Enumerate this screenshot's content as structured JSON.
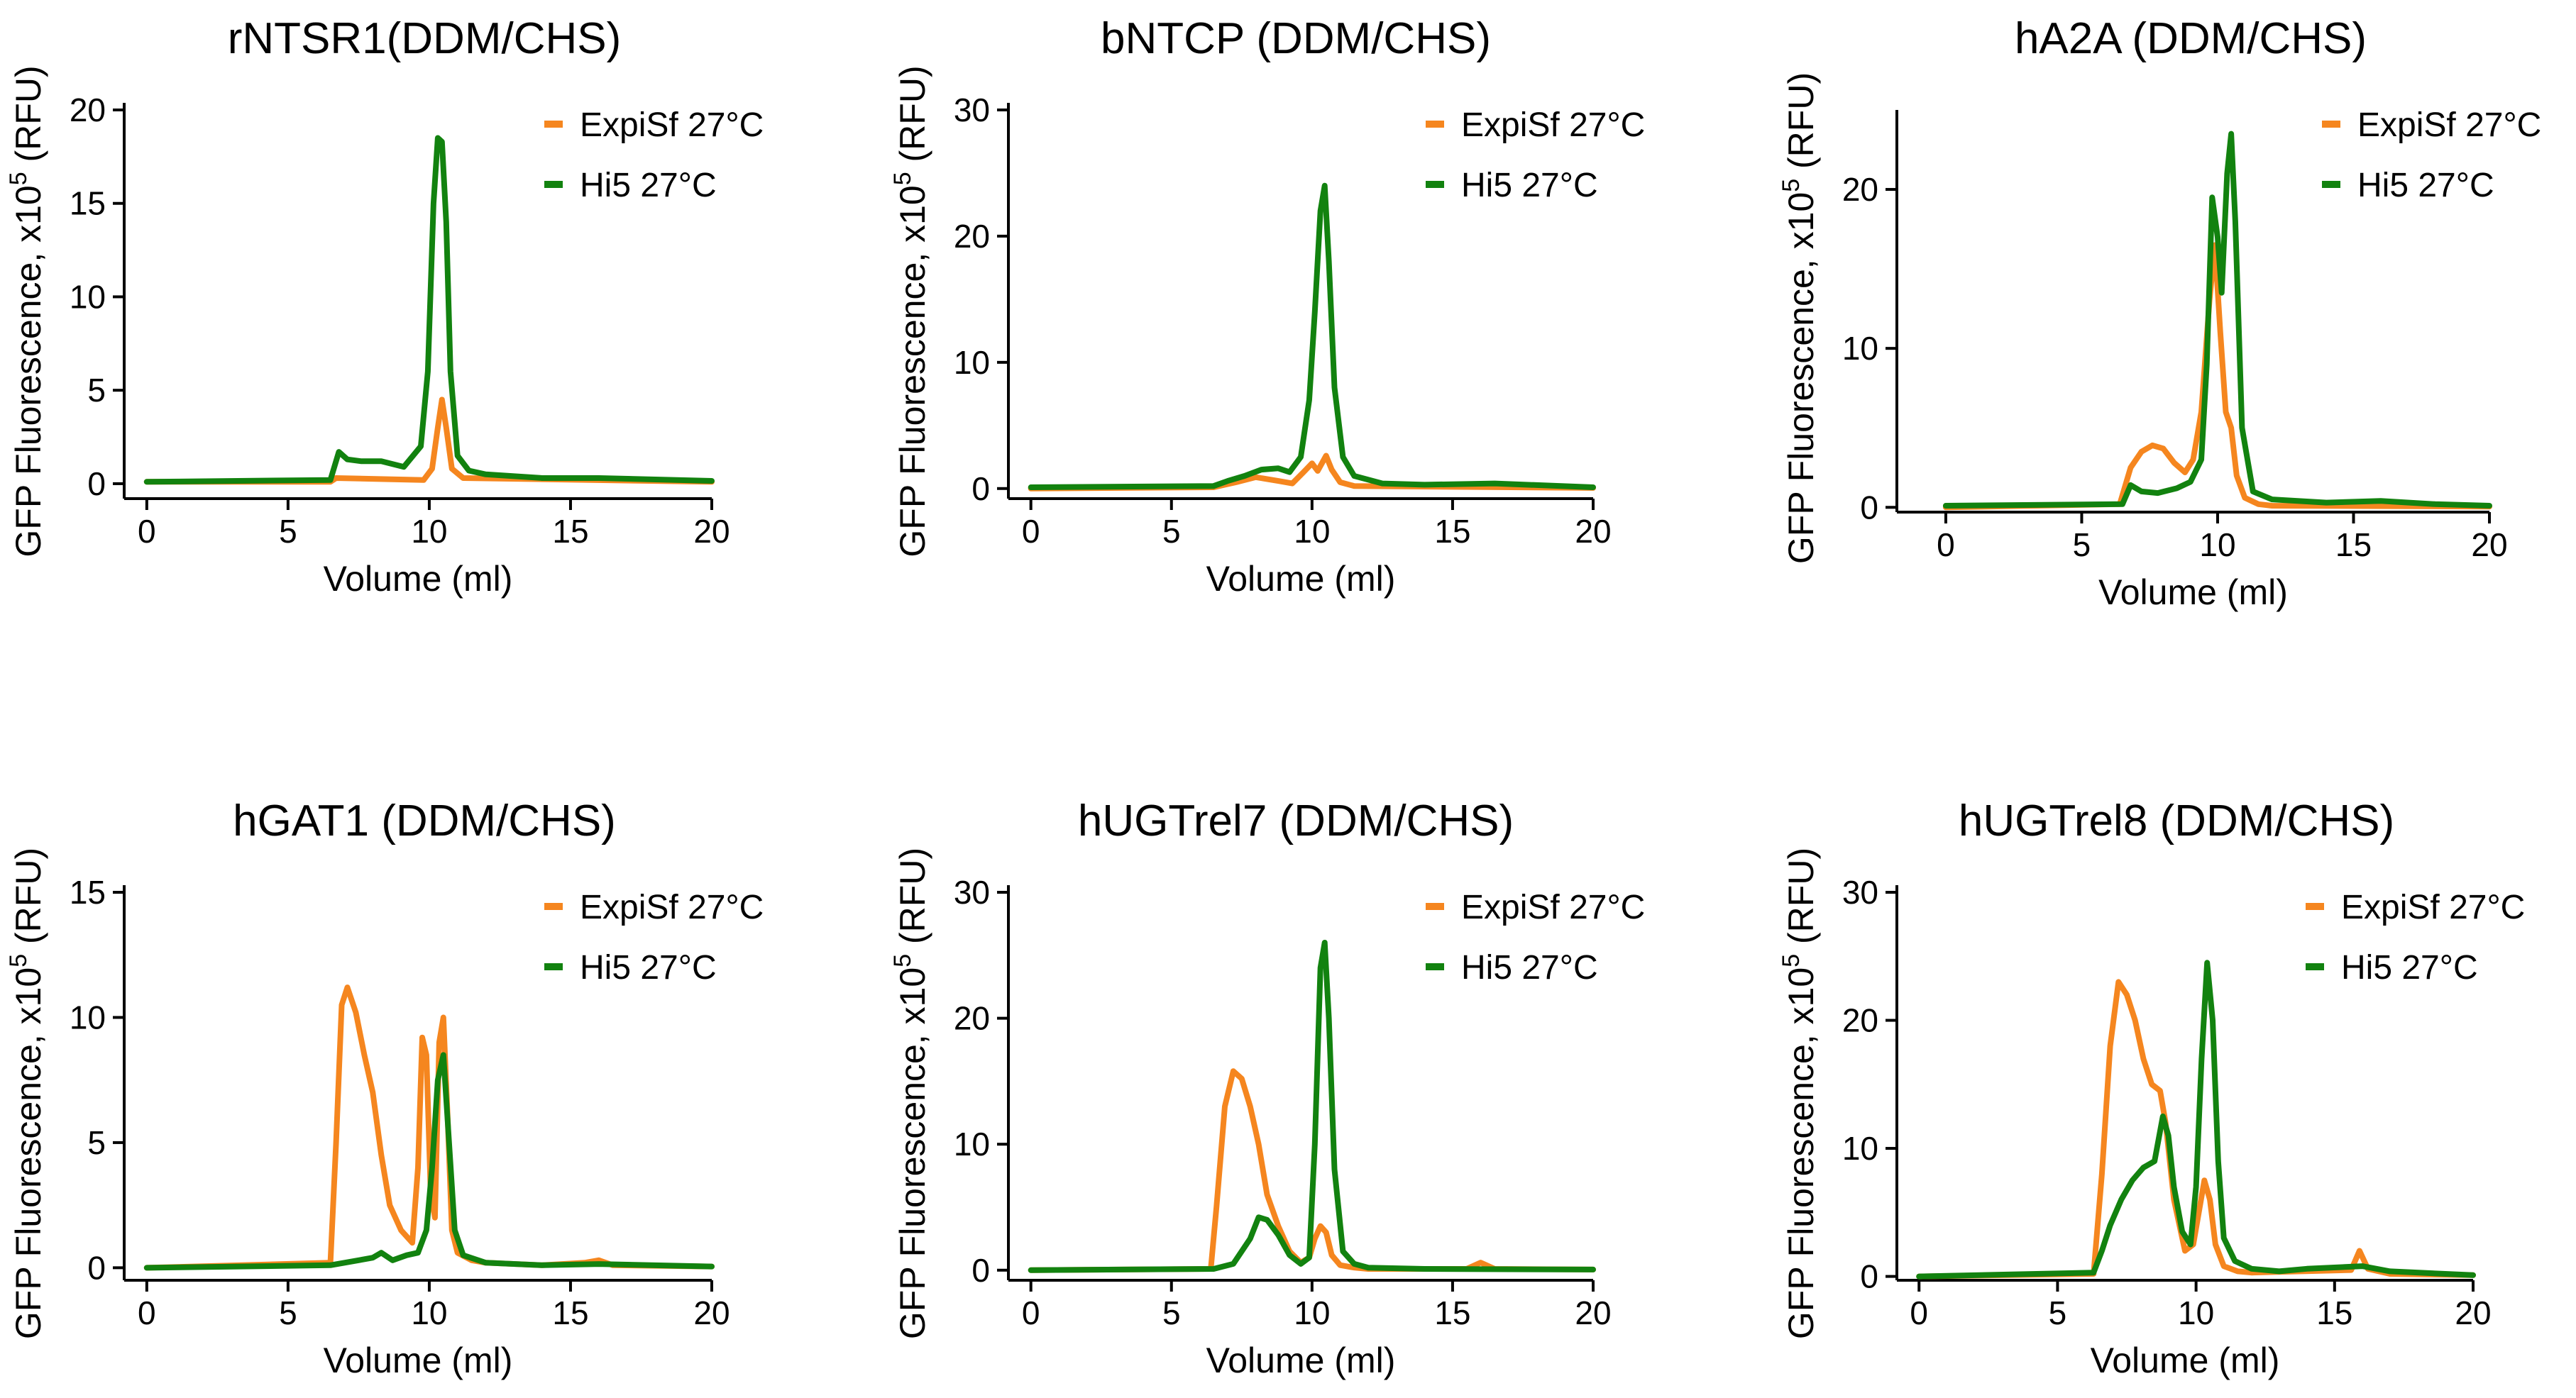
{
  "colors": {
    "expisf": "#F5861F",
    "hi5": "#12820F",
    "axis": "#000000"
  },
  "chart_data": [
    {
      "type": "line",
      "title": "rNTSR1(DDM/CHS)",
      "xlabel": "Volume (ml)",
      "ylabel_prefix": "GFP Fluorescence, x10",
      "ylabel_exp": "5",
      "ylabel_suffix": " (RFU)",
      "xlim": [
        -0.8,
        20
      ],
      "ylim": [
        -0.8,
        20
      ],
      "xticks": [
        0,
        5,
        10,
        15,
        20
      ],
      "yticks": [
        0,
        5,
        10,
        15,
        20
      ],
      "xtick_labels": [
        "0",
        "5",
        "10",
        "15",
        "20"
      ],
      "ytick_labels": [
        "0",
        "5",
        "10",
        "15",
        "20"
      ],
      "legend": [
        "ExpiSf 27°C",
        "Hi5 27°C"
      ],
      "series": [
        {
          "name": "ExpiSf 27°C",
          "x": [
            0,
            6.5,
            6.7,
            9.8,
            10.1,
            10.3,
            10.45,
            10.6,
            10.8,
            11.2,
            20
          ],
          "y": [
            0.1,
            0.1,
            0.3,
            0.2,
            0.8,
            3,
            4.5,
            3,
            0.8,
            0.3,
            0.1
          ]
        },
        {
          "name": "Hi5 27°C",
          "x": [
            0,
            6.5,
            6.8,
            7.1,
            7.6,
            8.3,
            9.1,
            9.7,
            9.95,
            10.15,
            10.3,
            10.45,
            10.6,
            10.75,
            11.0,
            11.4,
            12,
            14,
            16,
            20
          ],
          "y": [
            0.1,
            0.2,
            1.7,
            1.3,
            1.2,
            1.2,
            0.9,
            2.0,
            6,
            15,
            18.5,
            18.3,
            14,
            6,
            1.5,
            0.7,
            0.5,
            0.3,
            0.3,
            0.15
          ]
        }
      ]
    },
    {
      "type": "line",
      "title": "bNTCP (DDM/CHS)",
      "xlabel": "Volume (ml)",
      "ylabel_prefix": "GFP Fluorescence, x10",
      "ylabel_exp": "5",
      "ylabel_suffix": " (RFU)",
      "xlim": [
        -0.8,
        20
      ],
      "ylim": [
        -0.8,
        30
      ],
      "xticks": [
        0,
        5,
        10,
        15,
        20
      ],
      "yticks": [
        0,
        10,
        20,
        30
      ],
      "xtick_labels": [
        "0",
        "5",
        "10",
        "15",
        "20"
      ],
      "ytick_labels": [
        "0",
        "10",
        "20",
        "30"
      ],
      "legend": [
        "ExpiSf 27°C",
        "Hi5 27°C"
      ],
      "series": [
        {
          "name": "ExpiSf 27°C",
          "x": [
            0,
            6.5,
            7.3,
            8.0,
            8.8,
            9.3,
            9.7,
            10.0,
            10.2,
            10.5,
            10.7,
            11.0,
            11.5,
            20
          ],
          "y": [
            0,
            0.1,
            0.5,
            0.9,
            0.6,
            0.4,
            1.3,
            2.0,
            1.4,
            2.6,
            1.5,
            0.5,
            0.2,
            0.05
          ]
        },
        {
          "name": "Hi5 27°C",
          "x": [
            0,
            6.5,
            7.0,
            7.6,
            8.2,
            8.8,
            9.2,
            9.6,
            9.9,
            10.1,
            10.3,
            10.45,
            10.6,
            10.8,
            11.1,
            11.5,
            12.5,
            14,
            16.5,
            20
          ],
          "y": [
            0.1,
            0.2,
            0.6,
            1.0,
            1.5,
            1.6,
            1.3,
            2.5,
            7,
            14,
            22,
            24,
            18,
            8,
            2.5,
            1.0,
            0.4,
            0.3,
            0.4,
            0.1
          ]
        }
      ]
    },
    {
      "type": "line",
      "title": "hA2A (DDM/CHS)",
      "xlabel": "Volume (ml)",
      "ylabel_prefix": "GFP Fluorescence, x10",
      "ylabel_exp": "5",
      "ylabel_suffix": " (RFU)",
      "xlim": [
        -1.8,
        20
      ],
      "ylim": [
        -0.3,
        25
      ],
      "xticks": [
        0,
        5,
        10,
        15,
        20
      ],
      "yticks": [
        0,
        10,
        20
      ],
      "xtick_labels": [
        "0",
        "5",
        "10",
        "15",
        "20"
      ],
      "ytick_labels": [
        "0",
        "10",
        "20"
      ],
      "legend": [
        "ExpiSf 27°C",
        "Hi5 27°C"
      ],
      "series": [
        {
          "name": "ExpiSf 27°C",
          "x": [
            0,
            6.4,
            6.8,
            7.2,
            7.6,
            8.0,
            8.4,
            8.8,
            9.1,
            9.4,
            9.7,
            9.9,
            10.1,
            10.3,
            10.5,
            10.7,
            11.0,
            11.5,
            12,
            20
          ],
          "y": [
            0,
            0.2,
            2.5,
            3.5,
            3.9,
            3.7,
            2.8,
            2.2,
            3.0,
            6.0,
            13,
            16.5,
            11,
            6,
            5,
            2.0,
            0.6,
            0.2,
            0.1,
            0.05
          ]
        },
        {
          "name": "Hi5 27°C",
          "x": [
            0,
            6.5,
            6.8,
            7.2,
            7.8,
            8.5,
            9.0,
            9.4,
            9.6,
            9.8,
            10.0,
            10.15,
            10.35,
            10.5,
            10.65,
            10.9,
            11.3,
            12,
            14,
            16,
            18,
            20
          ],
          "y": [
            0.1,
            0.2,
            1.4,
            1.0,
            0.9,
            1.2,
            1.6,
            3.0,
            9,
            19.5,
            17,
            13.5,
            21,
            23.5,
            18,
            5,
            1.0,
            0.5,
            0.3,
            0.4,
            0.2,
            0.1
          ]
        }
      ]
    },
    {
      "type": "line",
      "title": "hGAT1 (DDM/CHS)",
      "xlabel": "Volume (ml)",
      "ylabel_prefix": "GFP Fluorescence, x10",
      "ylabel_exp": "5",
      "ylabel_suffix": " (RFU)",
      "xlim": [
        -0.8,
        20
      ],
      "ylim": [
        -0.5,
        15
      ],
      "xticks": [
        0,
        5,
        10,
        15,
        20
      ],
      "yticks": [
        0,
        5,
        10,
        15
      ],
      "xtick_labels": [
        "0",
        "5",
        "10",
        "15",
        "20"
      ],
      "ytick_labels": [
        "0",
        "5",
        "10",
        "15"
      ],
      "legend": [
        "ExpiSf 27°C",
        "Hi5 27°C"
      ],
      "series": [
        {
          "name": "ExpiSf 27°C",
          "x": [
            0,
            6.5,
            6.7,
            6.9,
            7.1,
            7.4,
            7.7,
            8.0,
            8.3,
            8.6,
            9.0,
            9.4,
            9.6,
            9.75,
            9.9,
            10.05,
            10.2,
            10.35,
            10.5,
            10.65,
            10.8,
            11.0,
            11.5,
            12,
            14,
            15.5,
            16,
            16.5,
            20
          ],
          "y": [
            0,
            0.2,
            5,
            10.5,
            11.2,
            10.2,
            8.5,
            7.0,
            4.5,
            2.5,
            1.5,
            1.0,
            4,
            9.2,
            8.5,
            3,
            2.0,
            9,
            10,
            6,
            1.5,
            0.6,
            0.3,
            0.2,
            0.1,
            0.2,
            0.3,
            0.1,
            0.05
          ]
        },
        {
          "name": "Hi5 27°C",
          "x": [
            0,
            6.5,
            7.0,
            7.5,
            8.0,
            8.3,
            8.7,
            9.2,
            9.6,
            9.9,
            10.1,
            10.3,
            10.5,
            10.7,
            10.9,
            11.2,
            12,
            14,
            16,
            20
          ],
          "y": [
            0,
            0.1,
            0.2,
            0.3,
            0.4,
            0.6,
            0.3,
            0.5,
            0.6,
            1.5,
            4,
            7.5,
            8.5,
            5,
            1.5,
            0.5,
            0.2,
            0.1,
            0.15,
            0.05
          ]
        }
      ]
    },
    {
      "type": "line",
      "title": "hUGTrel7 (DDM/CHS)",
      "xlabel": "Volume (ml)",
      "ylabel_prefix": "GFP Fluorescence, x10",
      "ylabel_exp": "5",
      "ylabel_suffix": " (RFU)",
      "xlim": [
        -0.8,
        20
      ],
      "ylim": [
        -0.8,
        30
      ],
      "xticks": [
        0,
        5,
        10,
        15,
        20
      ],
      "yticks": [
        0,
        10,
        20,
        30
      ],
      "xtick_labels": [
        "0",
        "5",
        "10",
        "15",
        "20"
      ],
      "ytick_labels": [
        "0",
        "10",
        "20",
        "30"
      ],
      "legend": [
        "ExpiSf 27°C",
        "Hi5 27°C"
      ],
      "series": [
        {
          "name": "ExpiSf 27°C",
          "x": [
            0,
            6.4,
            6.6,
            6.9,
            7.2,
            7.5,
            7.8,
            8.1,
            8.4,
            8.8,
            9.2,
            9.6,
            9.9,
            10.1,
            10.3,
            10.5,
            10.7,
            11.0,
            11.5,
            12,
            15.5,
            16,
            16.5,
            20
          ],
          "y": [
            0,
            0.1,
            5,
            13,
            15.8,
            15.2,
            13,
            10,
            6,
            3.5,
            1.5,
            0.6,
            1.0,
            2.5,
            3.5,
            3,
            1.2,
            0.4,
            0.2,
            0.1,
            0.1,
            0.6,
            0.1,
            0.05
          ]
        },
        {
          "name": "Hi5 27°C",
          "x": [
            0,
            6.5,
            7.2,
            7.8,
            8.1,
            8.4,
            8.8,
            9.2,
            9.6,
            9.9,
            10.1,
            10.3,
            10.45,
            10.6,
            10.8,
            11.1,
            11.5,
            12,
            14,
            20
          ],
          "y": [
            0,
            0.1,
            0.5,
            2.5,
            4.2,
            4.0,
            2.8,
            1.2,
            0.5,
            1.0,
            10,
            24,
            26,
            20,
            8,
            1.5,
            0.5,
            0.2,
            0.1,
            0.05
          ]
        }
      ]
    },
    {
      "type": "line",
      "title": "hUGTrel8 (DDM/CHS)",
      "xlabel": "Volume (ml)",
      "ylabel_prefix": "GFP Fluorescence, x10",
      "ylabel_exp": "5",
      "ylabel_suffix": " (RFU)",
      "xlim": [
        -0.8,
        20
      ],
      "ylim": [
        -0.3,
        30
      ],
      "xticks": [
        0,
        5,
        10,
        15,
        20
      ],
      "yticks": [
        0,
        10,
        20,
        30
      ],
      "xtick_labels": [
        "0",
        "5",
        "10",
        "15",
        "20"
      ],
      "ytick_labels": [
        "0",
        "10",
        "20",
        "30"
      ],
      "legend": [
        "ExpiSf 27°C",
        "Hi5 27°C"
      ],
      "series": [
        {
          "name": "ExpiSf 27°C",
          "x": [
            0,
            6.3,
            6.6,
            6.9,
            7.2,
            7.5,
            7.8,
            8.1,
            8.4,
            8.7,
            8.9,
            9.2,
            9.6,
            9.9,
            10.1,
            10.3,
            10.5,
            10.7,
            11.0,
            11.5,
            12,
            15.6,
            15.9,
            16.2,
            17,
            20
          ],
          "y": [
            0,
            0.2,
            8,
            18,
            23,
            22,
            20,
            17,
            15,
            14.5,
            12,
            6,
            2.0,
            2.5,
            5,
            7.5,
            6,
            2.5,
            0.8,
            0.4,
            0.3,
            0.5,
            2.0,
            0.6,
            0.2,
            0.1
          ]
        },
        {
          "name": "Hi5 27°C",
          "x": [
            0,
            6.3,
            6.6,
            6.9,
            7.3,
            7.7,
            8.1,
            8.5,
            8.8,
            9.0,
            9.2,
            9.5,
            9.8,
            10.0,
            10.2,
            10.4,
            10.6,
            10.8,
            11.0,
            11.4,
            12,
            13,
            14,
            16,
            17,
            20
          ],
          "y": [
            0,
            0.3,
            2.0,
            4,
            6,
            7.5,
            8.5,
            9,
            12.5,
            11,
            7,
            3.5,
            2.5,
            7,
            17,
            24.5,
            20,
            9,
            3,
            1.2,
            0.6,
            0.4,
            0.6,
            0.8,
            0.4,
            0.1
          ]
        }
      ]
    }
  ]
}
